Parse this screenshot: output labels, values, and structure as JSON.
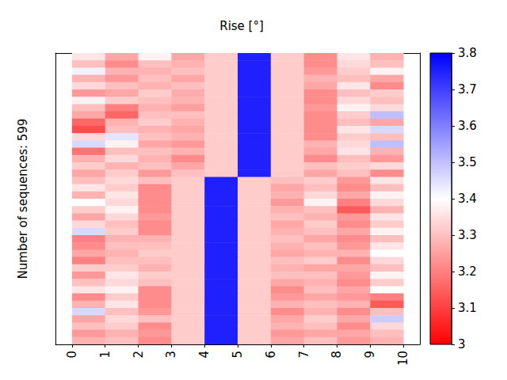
{
  "chart_data": {
    "type": "heatmap",
    "title": "Rise [°]",
    "y_label": "Number of sequences: 599",
    "xlim": [
      -0.5,
      10.5
    ],
    "xticks": [
      0,
      1,
      2,
      3,
      4,
      5,
      6,
      7,
      8,
      9,
      10
    ],
    "ylim": [
      0,
      40
    ],
    "tick_labels": "x",
    "colorbar": {
      "range": [
        3,
        3.8
      ],
      "ticks": [
        3,
        3.1,
        3.2,
        3.3,
        3.4,
        3.5,
        3.6,
        3.7,
        3.8
      ]
    },
    "cells": [
      [
        3.36,
        3.26,
        3.38,
        3.26,
        3.32,
        3.75,
        3.32,
        3.22,
        3.36,
        3.28
      ],
      [
        3.3,
        3.22,
        3.3,
        3.28,
        3.32,
        3.75,
        3.32,
        3.22,
        3.34,
        3.3
      ],
      [
        3.42,
        3.28,
        3.28,
        3.3,
        3.32,
        3.75,
        3.32,
        3.24,
        3.32,
        3.38
      ],
      [
        3.28,
        3.24,
        3.3,
        3.26,
        3.32,
        3.75,
        3.32,
        3.28,
        3.3,
        3.26
      ],
      [
        3.34,
        3.3,
        3.28,
        3.3,
        3.32,
        3.75,
        3.32,
        3.26,
        3.36,
        3.22
      ],
      [
        3.24,
        3.26,
        3.32,
        3.27,
        3.32,
        3.75,
        3.32,
        3.22,
        3.3,
        3.32
      ],
      [
        3.38,
        3.32,
        3.3,
        3.28,
        3.32,
        3.75,
        3.32,
        3.22,
        3.34,
        3.3
      ],
      [
        3.3,
        3.2,
        3.28,
        3.25,
        3.32,
        3.75,
        3.32,
        3.24,
        3.38,
        3.34
      ],
      [
        3.26,
        3.16,
        3.3,
        3.3,
        3.32,
        3.75,
        3.32,
        3.22,
        3.32,
        3.5
      ],
      [
        3.16,
        3.28,
        3.32,
        3.28,
        3.32,
        3.75,
        3.32,
        3.22,
        3.3,
        3.26
      ],
      [
        3.12,
        3.3,
        3.28,
        3.26,
        3.32,
        3.75,
        3.32,
        3.22,
        3.36,
        3.46
      ],
      [
        3.34,
        3.44,
        3.3,
        3.28,
        3.32,
        3.75,
        3.32,
        3.22,
        3.32,
        3.3
      ],
      [
        3.46,
        3.38,
        3.26,
        3.24,
        3.32,
        3.75,
        3.32,
        3.28,
        3.34,
        3.5
      ],
      [
        3.18,
        3.3,
        3.3,
        3.28,
        3.32,
        3.75,
        3.32,
        3.26,
        3.36,
        3.28
      ],
      [
        3.28,
        3.34,
        3.28,
        3.22,
        3.32,
        3.75,
        3.32,
        3.22,
        3.3,
        3.24
      ],
      [
        3.32,
        3.28,
        3.3,
        3.26,
        3.32,
        3.75,
        3.32,
        3.3,
        3.32,
        3.34
      ],
      [
        3.26,
        3.32,
        3.24,
        3.3,
        3.32,
        3.75,
        3.32,
        3.26,
        3.3,
        3.22
      ],
      [
        3.3,
        3.34,
        3.3,
        3.32,
        3.75,
        3.32,
        3.3,
        3.32,
        3.24,
        3.36
      ],
      [
        3.36,
        3.32,
        3.22,
        3.32,
        3.75,
        3.32,
        3.26,
        3.3,
        3.22,
        3.3
      ],
      [
        3.28,
        3.36,
        3.22,
        3.32,
        3.75,
        3.32,
        3.28,
        3.34,
        3.26,
        3.38
      ],
      [
        3.4,
        3.34,
        3.22,
        3.32,
        3.75,
        3.32,
        3.24,
        3.38,
        3.2,
        3.34
      ],
      [
        3.32,
        3.38,
        3.22,
        3.32,
        3.75,
        3.32,
        3.28,
        3.3,
        3.14,
        3.28
      ],
      [
        3.26,
        3.34,
        3.24,
        3.32,
        3.75,
        3.32,
        3.3,
        3.28,
        3.24,
        3.36
      ],
      [
        3.34,
        3.3,
        3.22,
        3.32,
        3.75,
        3.32,
        3.26,
        3.32,
        3.22,
        3.32
      ],
      [
        3.46,
        3.32,
        3.22,
        3.32,
        3.75,
        3.32,
        3.28,
        3.3,
        3.26,
        3.38
      ],
      [
        3.2,
        3.28,
        3.28,
        3.32,
        3.75,
        3.32,
        3.3,
        3.26,
        3.22,
        3.3
      ],
      [
        3.22,
        3.3,
        3.3,
        3.32,
        3.75,
        3.32,
        3.28,
        3.3,
        3.24,
        3.36
      ],
      [
        3.26,
        3.28,
        3.32,
        3.32,
        3.75,
        3.32,
        3.26,
        3.28,
        3.28,
        3.4
      ],
      [
        3.2,
        3.3,
        3.3,
        3.32,
        3.75,
        3.32,
        3.3,
        3.32,
        3.22,
        3.34
      ],
      [
        3.32,
        3.32,
        3.28,
        3.32,
        3.75,
        3.32,
        3.28,
        3.26,
        3.26,
        3.3
      ],
      [
        3.24,
        3.36,
        3.32,
        3.32,
        3.75,
        3.32,
        3.3,
        3.3,
        3.24,
        3.38
      ],
      [
        3.3,
        3.34,
        3.3,
        3.32,
        3.75,
        3.32,
        3.26,
        3.28,
        3.22,
        3.32
      ],
      [
        3.36,
        3.38,
        3.22,
        3.32,
        3.75,
        3.32,
        3.22,
        3.3,
        3.26,
        3.4
      ],
      [
        3.22,
        3.32,
        3.22,
        3.32,
        3.75,
        3.32,
        3.24,
        3.26,
        3.24,
        3.2
      ],
      [
        3.28,
        3.36,
        3.22,
        3.32,
        3.75,
        3.32,
        3.28,
        3.3,
        3.28,
        3.14
      ],
      [
        3.46,
        3.3,
        3.24,
        3.32,
        3.75,
        3.32,
        3.22,
        3.28,
        3.22,
        3.3
      ],
      [
        3.26,
        3.34,
        3.3,
        3.32,
        3.75,
        3.32,
        3.26,
        3.32,
        3.26,
        3.48
      ],
      [
        3.3,
        3.32,
        3.22,
        3.32,
        3.75,
        3.32,
        3.28,
        3.3,
        3.22,
        3.34
      ],
      [
        3.24,
        3.28,
        3.24,
        3.32,
        3.75,
        3.32,
        3.24,
        3.26,
        3.26,
        3.3
      ],
      [
        3.28,
        3.3,
        3.22,
        3.32,
        3.75,
        3.32,
        3.26,
        3.3,
        3.24,
        3.28
      ]
    ]
  }
}
